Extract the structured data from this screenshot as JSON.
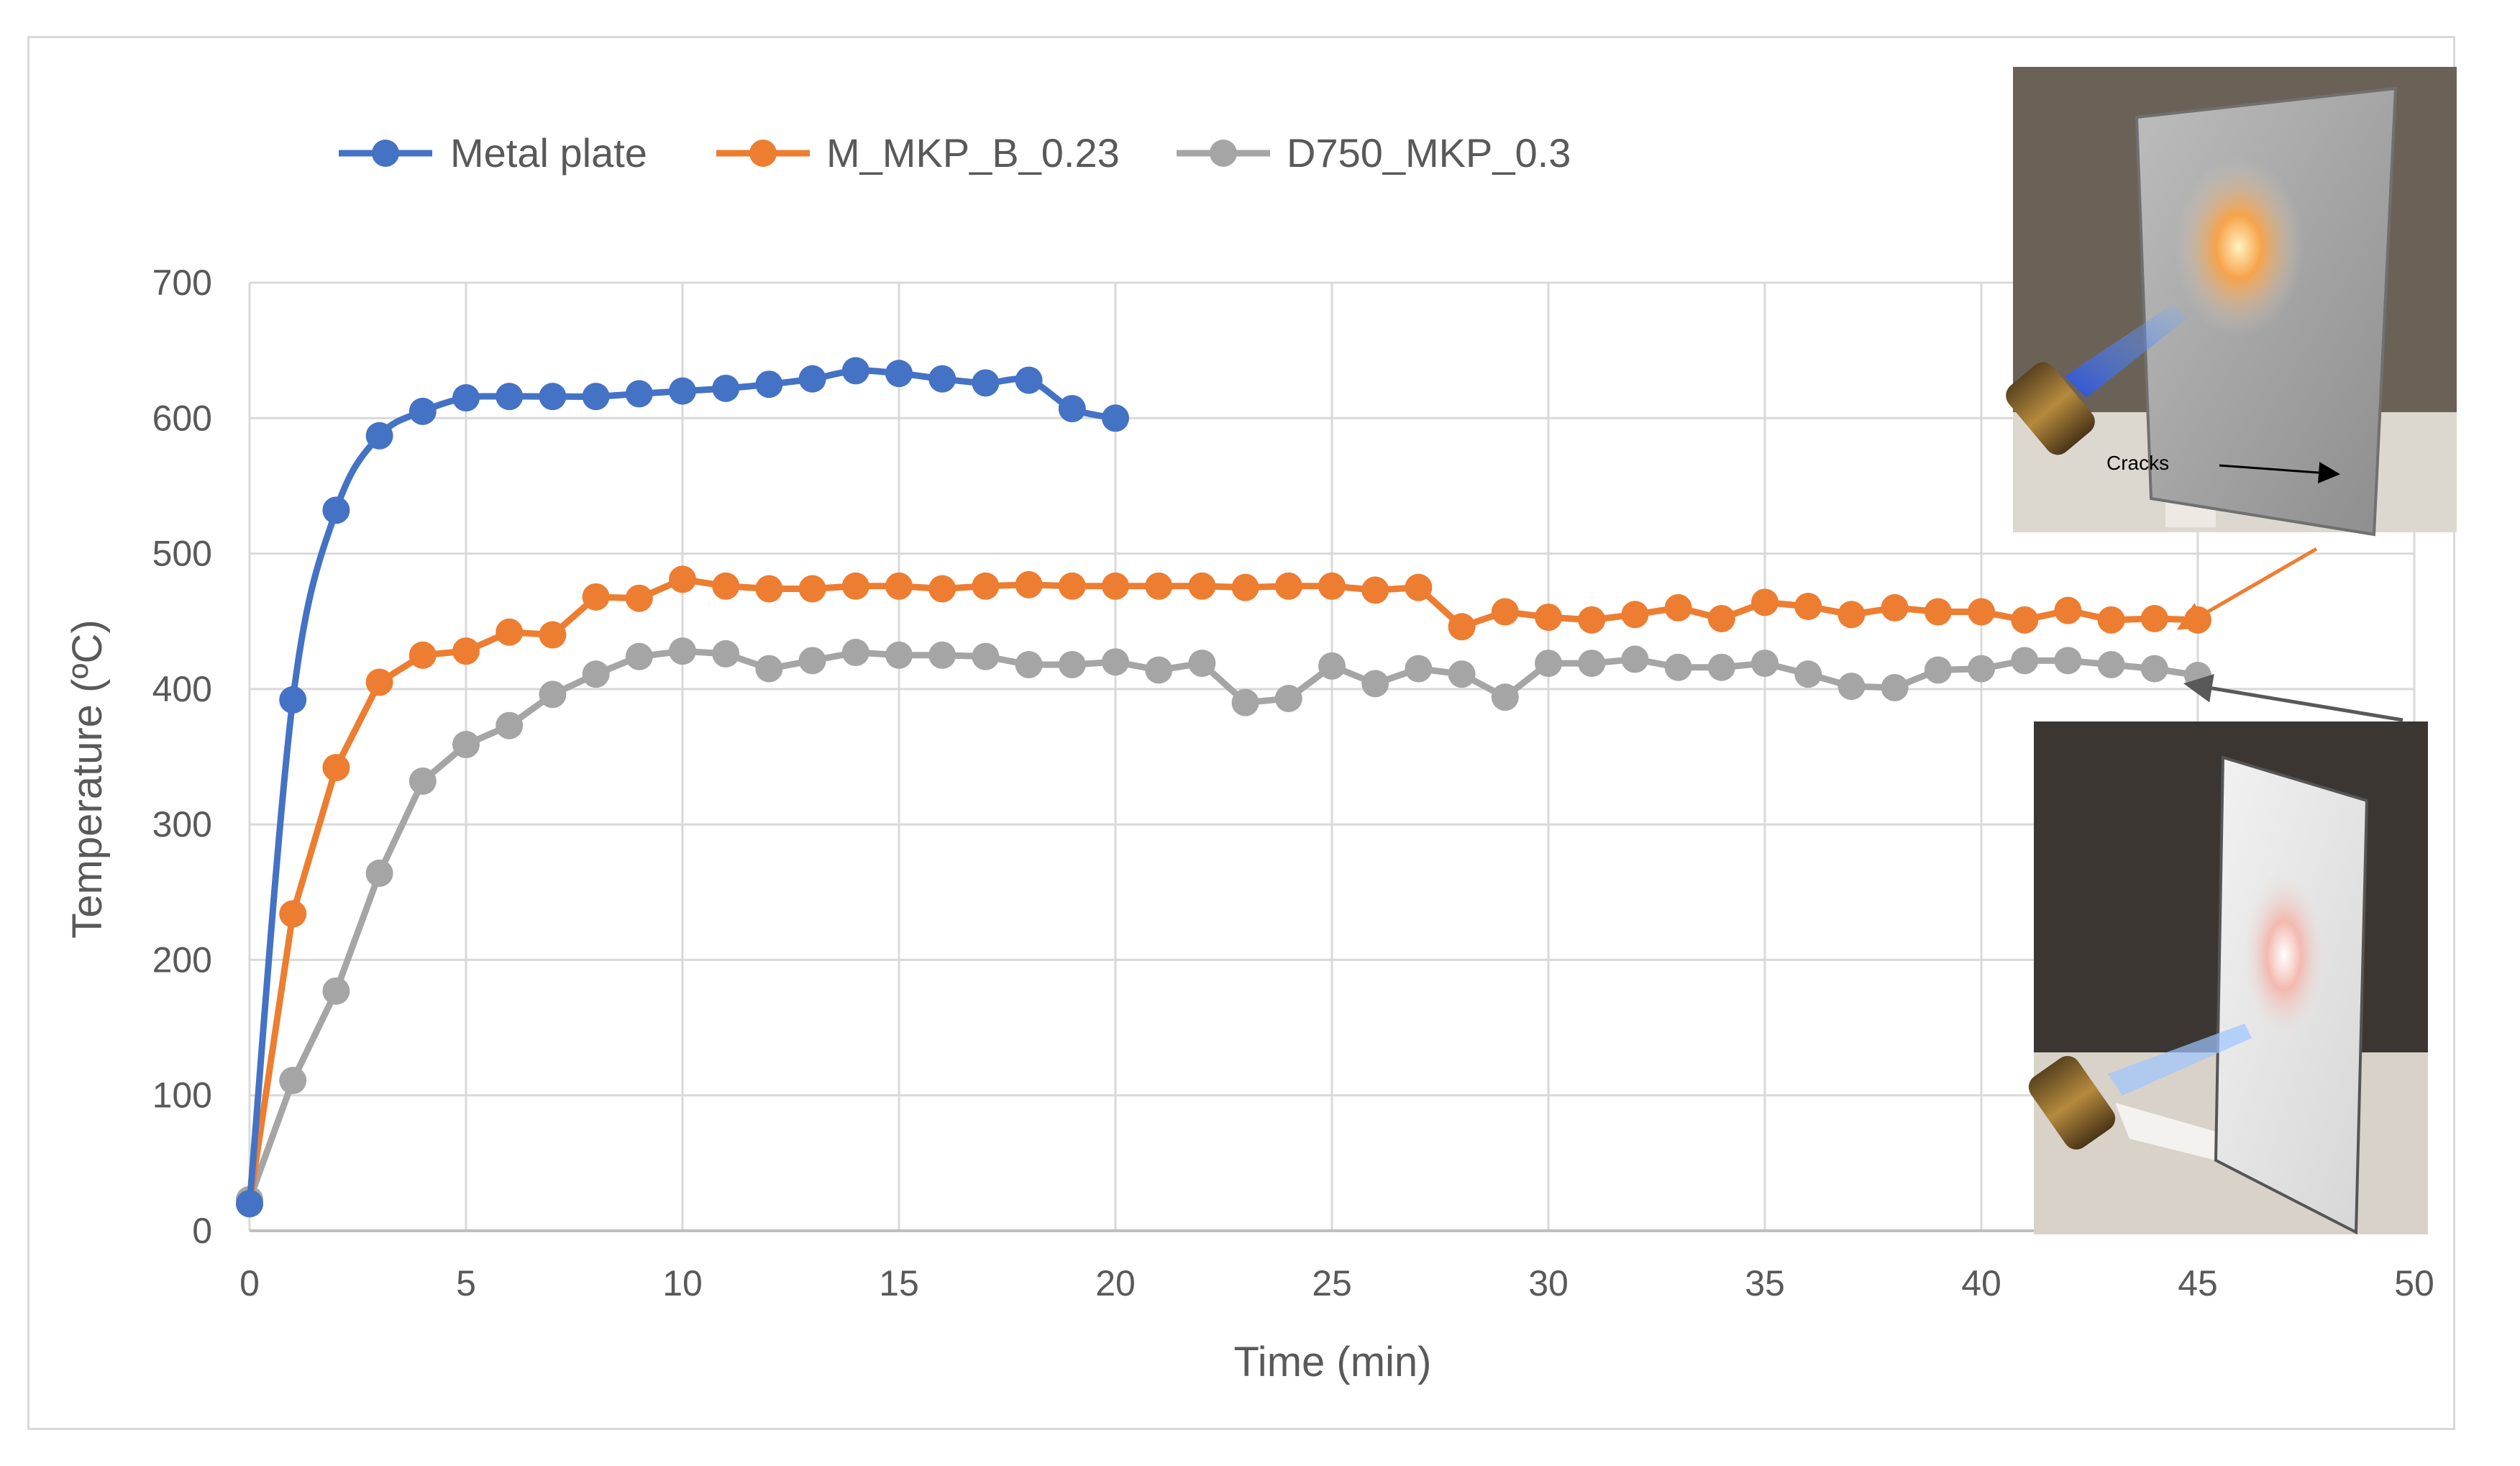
{
  "chart_data": {
    "type": "line",
    "title": "",
    "xlabel": "Time (min)",
    "ylabel": "Temperature (ºC)",
    "xlim": [
      0,
      50
    ],
    "ylim": [
      0,
      700
    ],
    "xticks": [
      0,
      5,
      10,
      15,
      20,
      25,
      30,
      35,
      40,
      45,
      50
    ],
    "yticks": [
      0,
      100,
      200,
      300,
      400,
      500,
      600,
      700
    ],
    "grid": true,
    "legend_position": "top",
    "series": [
      {
        "name": "Metal plate",
        "color": "#4472c4",
        "smooth": true,
        "x": [
          0,
          1,
          2,
          3,
          4,
          5,
          6,
          7,
          8,
          9,
          10,
          11,
          12,
          13,
          14,
          15,
          16,
          17,
          18,
          19,
          20
        ],
        "y": [
          20,
          392,
          532,
          587,
          605,
          615,
          616,
          616,
          616,
          618,
          620,
          622,
          625,
          629,
          635,
          633,
          629,
          626,
          628,
          607,
          600
        ]
      },
      {
        "name": "M_MKP_B_0.23",
        "color": "#ed7d31",
        "smooth": false,
        "x": [
          0,
          1,
          2,
          3,
          4,
          5,
          6,
          7,
          8,
          9,
          10,
          11,
          12,
          13,
          14,
          15,
          16,
          17,
          18,
          19,
          20,
          21,
          22,
          23,
          24,
          25,
          26,
          27,
          28,
          29,
          30,
          31,
          32,
          33,
          34,
          35,
          36,
          37,
          38,
          39,
          40,
          41,
          42,
          43,
          44,
          45
        ],
        "y": [
          20,
          234,
          342,
          405,
          425,
          428,
          442,
          440,
          468,
          467,
          481,
          476,
          474,
          474,
          476,
          476,
          474,
          476,
          477,
          476,
          476,
          476,
          476,
          475,
          476,
          476,
          473,
          475,
          446,
          457,
          453,
          451,
          455,
          460,
          452,
          464,
          461,
          455,
          460,
          457,
          457,
          451,
          458,
          451,
          452,
          451
        ]
      },
      {
        "name": "D750_MKP_0.3",
        "color": "#a5a5a5",
        "smooth": false,
        "x": [
          0,
          1,
          2,
          3,
          4,
          5,
          6,
          7,
          8,
          9,
          10,
          11,
          12,
          13,
          14,
          15,
          16,
          17,
          18,
          19,
          20,
          21,
          22,
          23,
          24,
          25,
          26,
          27,
          28,
          29,
          30,
          31,
          32,
          33,
          34,
          35,
          36,
          37,
          38,
          39,
          40,
          41,
          42,
          43,
          44,
          45
        ],
        "y": [
          23,
          111,
          177,
          264,
          332,
          359,
          373,
          396,
          411,
          424,
          428,
          426,
          415,
          421,
          427,
          425,
          425,
          424,
          418,
          418,
          420,
          414,
          419,
          390,
          393,
          417,
          404,
          415,
          411,
          394,
          419,
          419,
          422,
          416,
          416,
          419,
          411,
          402,
          401,
          414,
          415,
          421,
          421,
          418,
          415,
          410
        ]
      }
    ],
    "annotations": {
      "cracks_label": "Cracks"
    }
  }
}
